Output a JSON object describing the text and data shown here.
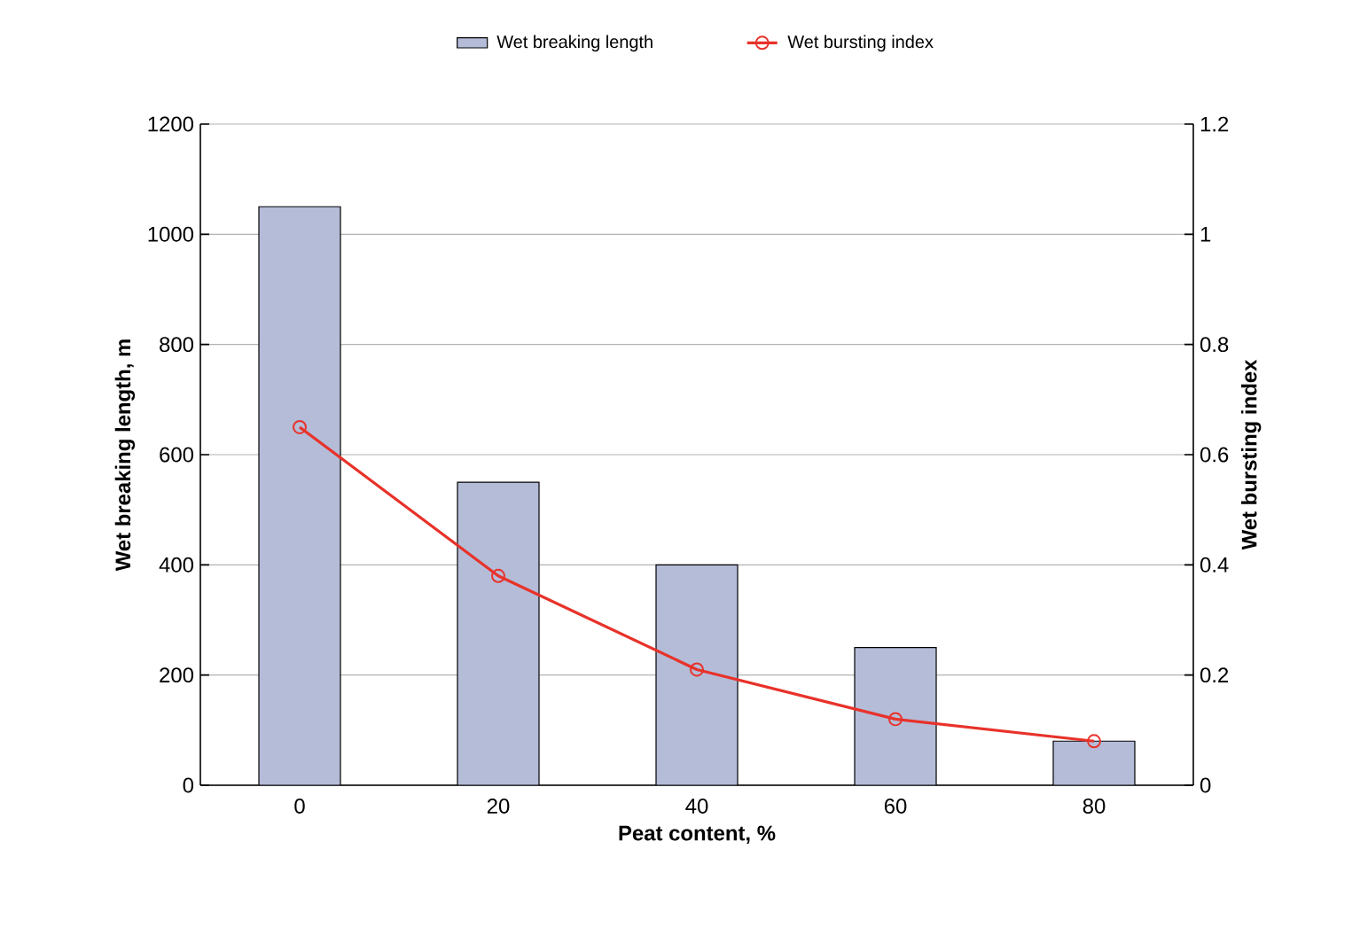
{
  "chart_data": {
    "type": "bar",
    "categories": [
      "0",
      "20",
      "40",
      "60",
      "80"
    ],
    "xlabel": "Peat content, %",
    "ylabel": "Wet  breaking length, m",
    "y2label": "Wet bursting index",
    "series": [
      {
        "name": "Wet breaking length",
        "color": "#b4bcd8",
        "values": [
          1050,
          550,
          400,
          250,
          80
        ]
      },
      {
        "name": "Wet bursting index",
        "type": "line",
        "axis": "y2",
        "color": "#e8322a",
        "marker": "circle",
        "values": [
          0.65,
          0.38,
          0.21,
          0.12,
          0.08
        ]
      }
    ],
    "ylim": [
      0,
      1200
    ],
    "yticks": [
      0,
      200,
      400,
      600,
      800,
      1000,
      1200
    ],
    "y2lim": [
      0,
      1.2
    ],
    "y2ticks": [
      0,
      0.2,
      0.4,
      0.6,
      0.8,
      1,
      1.2
    ],
    "grid": "y",
    "legend": "top"
  }
}
